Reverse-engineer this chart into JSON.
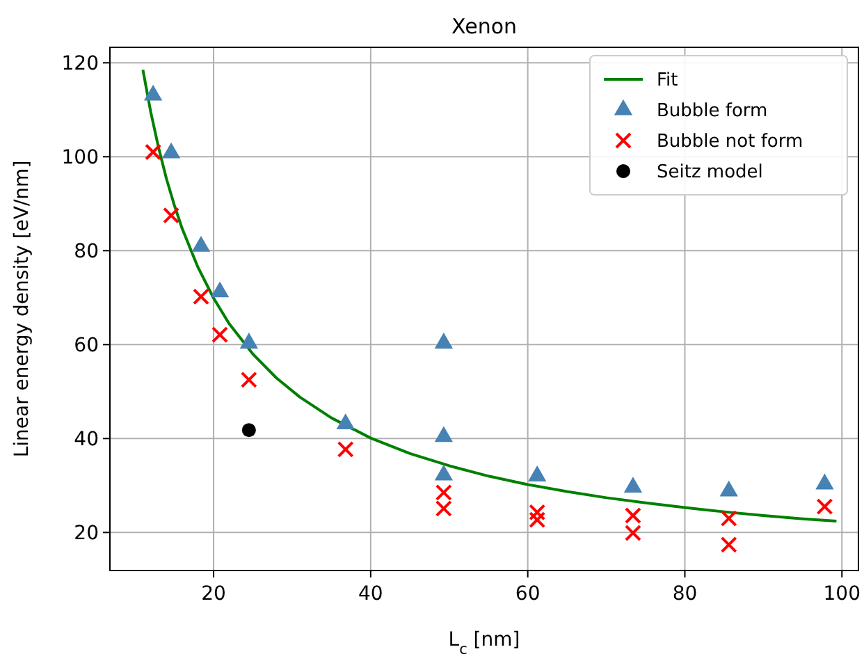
{
  "chart_data": {
    "type": "scatter",
    "title": "Xenon",
    "xlabel": "L$_{c}$ [nm]",
    "ylabel": "Linear energy density [eV/nm]",
    "xlim": [
      6.8,
      102.1
    ],
    "ylim": [
      11.9,
      123.3
    ],
    "xticks": [
      20,
      40,
      60,
      80,
      100
    ],
    "yticks": [
      20,
      40,
      60,
      80,
      100,
      120
    ],
    "grid": true,
    "legend": "top right",
    "series": [
      {
        "name": "Fit",
        "type": "line",
        "color": "#008000",
        "marker": "none",
        "line_style": "solid",
        "x": [
          11,
          12,
          13,
          14,
          15,
          16,
          18,
          20,
          22,
          25,
          28,
          31,
          35,
          40,
          45,
          50,
          55,
          60,
          65,
          70,
          75,
          80,
          85,
          90,
          95,
          99.3
        ],
        "values": [
          118.5,
          109.5,
          101.9,
          95.3,
          89.7,
          84.7,
          76.5,
          69.9,
          64.4,
          58.0,
          52.9,
          48.8,
          44.4,
          40.1,
          36.8,
          34.2,
          32.0,
          30.2,
          28.7,
          27.4,
          26.3,
          25.3,
          24.4,
          23.6,
          22.9,
          22.4
        ]
      },
      {
        "name": "Bubble form",
        "color": "#4682b4",
        "marker": "triangle",
        "x": [
          12.3,
          14.6,
          18.4,
          20.8,
          24.5,
          36.8,
          49.3,
          49.3,
          49.3,
          61.2,
          73.4,
          85.6,
          97.8
        ],
        "values": [
          113.1,
          100.8,
          80.9,
          71.2,
          60.3,
          43.1,
          60.3,
          40.4,
          32.2,
          32.0,
          29.6,
          28.8,
          30.3
        ]
      },
      {
        "name": "Bubble not form",
        "color": "#ff0000",
        "marker": "cross",
        "x": [
          12.3,
          14.6,
          18.4,
          20.8,
          24.5,
          36.8,
          49.3,
          49.3,
          61.2,
          61.2,
          73.4,
          73.4,
          85.6,
          85.6,
          97.8
        ],
        "values": [
          101.0,
          87.5,
          70.2,
          62.1,
          52.5,
          37.7,
          28.5,
          25.1,
          24.3,
          22.7,
          23.6,
          19.9,
          23.0,
          17.4,
          25.5
        ]
      },
      {
        "name": "Seitz model",
        "color": "#000000",
        "marker": "circle",
        "x": [
          24.5
        ],
        "values": [
          41.8
        ]
      }
    ]
  }
}
